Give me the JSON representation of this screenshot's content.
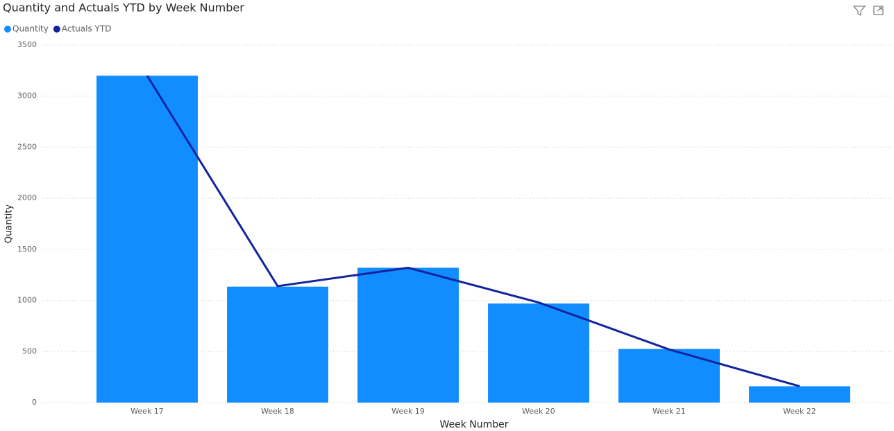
{
  "chart_data": {
    "type": "bar-line",
    "title": "Quantity and Actuals YTD by Week Number",
    "x_label": "Week Number",
    "y_label": "Quantity",
    "categories": [
      "Week 17",
      "Week 18",
      "Week 19",
      "Week 20",
      "Week 21",
      "Week 22"
    ],
    "series": [
      {
        "name": "Quantity",
        "type": "bar",
        "color": "#118dff",
        "values": [
          3200,
          1135,
          1320,
          970,
          525,
          160
        ]
      },
      {
        "name": "Actuals YTD",
        "type": "line",
        "color": "#12239e",
        "values": [
          3200,
          1140,
          1320,
          980,
          520,
          160
        ]
      }
    ],
    "ylim": [
      0,
      3500
    ],
    "yticks": [
      0,
      500,
      1000,
      1500,
      2000,
      2500,
      3000,
      3500
    ],
    "grid": true
  }
}
